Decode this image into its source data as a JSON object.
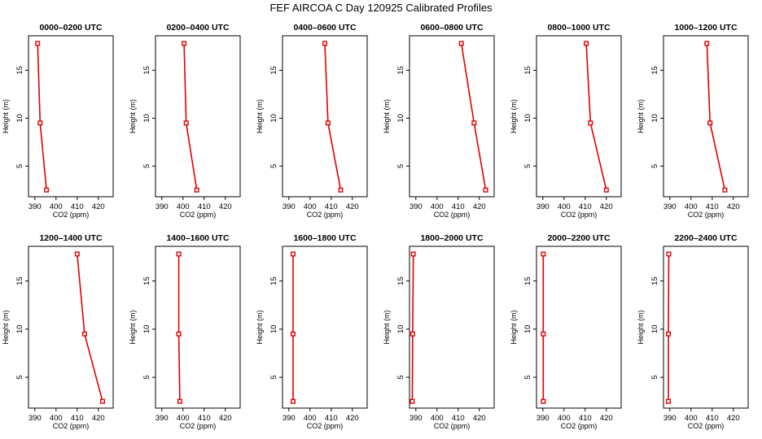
{
  "chart_data": {
    "type": "line",
    "title": "FEF AIRCOA C  Day 120925  Calibrated Profiles",
    "xlabel": "CO2 (ppm)",
    "ylabel": "Height (m)",
    "xlim": [
      387,
      427
    ],
    "ylim": [
      1.8,
      18.6
    ],
    "xticks": [
      390,
      400,
      410,
      420
    ],
    "yticks": [
      5,
      10,
      15
    ],
    "color": "#e00000",
    "panels": [
      {
        "title": "0000–0200 UTC",
        "x": [
          391.3,
          392.5,
          395.5
        ],
        "y": [
          17.8,
          9.5,
          2.5
        ]
      },
      {
        "title": "0200–0400 UTC",
        "x": [
          400.5,
          401.5,
          406.5
        ],
        "y": [
          17.8,
          9.5,
          2.5
        ]
      },
      {
        "title": "0400–0600 UTC",
        "x": [
          407.0,
          408.5,
          414.5
        ],
        "y": [
          17.8,
          9.5,
          2.5
        ]
      },
      {
        "title": "0600–0800 UTC",
        "x": [
          411.5,
          417.5,
          423.0
        ],
        "y": [
          17.8,
          9.5,
          2.5
        ]
      },
      {
        "title": "0800–1000 UTC",
        "x": [
          410.5,
          412.5,
          420.0
        ],
        "y": [
          17.8,
          9.5,
          2.5
        ]
      },
      {
        "title": "1000–1200 UTC",
        "x": [
          407.5,
          409.0,
          416.0
        ],
        "y": [
          17.8,
          9.5,
          2.5
        ]
      },
      {
        "title": "1200–1400 UTC",
        "x": [
          410.0,
          413.5,
          422.0
        ],
        "y": [
          17.8,
          9.5,
          2.5
        ]
      },
      {
        "title": "1400–1600 UTC",
        "x": [
          398.0,
          398.0,
          398.5
        ],
        "y": [
          17.8,
          9.5,
          2.5
        ]
      },
      {
        "title": "1600–1800 UTC",
        "x": [
          392.0,
          392.0,
          392.0
        ],
        "y": [
          17.8,
          9.5,
          2.5
        ]
      },
      {
        "title": "1800–2000 UTC",
        "x": [
          388.8,
          388.5,
          388.3
        ],
        "y": [
          17.8,
          9.5,
          2.5
        ]
      },
      {
        "title": "2000–2200 UTC",
        "x": [
          390.2,
          390.2,
          390.2
        ],
        "y": [
          17.8,
          9.5,
          2.5
        ]
      },
      {
        "title": "2200–2400 UTC",
        "x": [
          389.5,
          389.3,
          389.3
        ],
        "y": [
          17.8,
          9.5,
          2.5
        ]
      }
    ]
  }
}
